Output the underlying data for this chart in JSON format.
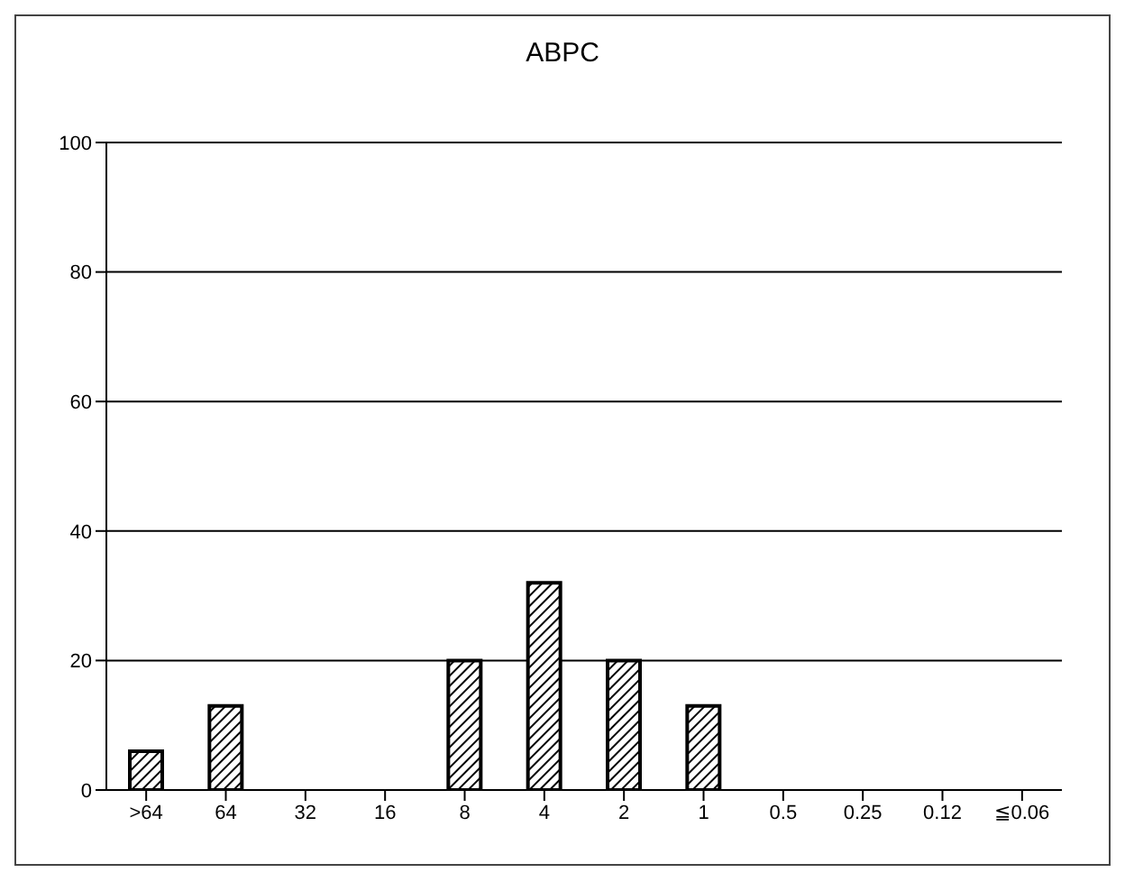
{
  "chart_data": {
    "type": "bar",
    "title": "ABPC",
    "categories": [
      ">64",
      "64",
      "32",
      "16",
      "8",
      "4",
      "2",
      "1",
      "0.5",
      "0.25",
      "0.12",
      "≦0.06"
    ],
    "values": [
      6,
      13,
      0,
      0,
      20,
      32,
      20,
      13,
      0,
      0,
      0,
      0
    ],
    "color": "#000000",
    "ylim": [
      0,
      100
    ],
    "yticks": [
      0,
      20,
      40,
      60,
      80,
      100
    ],
    "grid": "y"
  }
}
